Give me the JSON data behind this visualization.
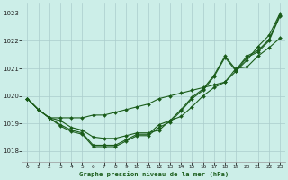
{
  "title": "Graphe pression niveau de la mer (hPa)",
  "background_color": "#cceee8",
  "grid_color": "#aacccc",
  "line_color": "#1a5c1a",
  "x_ticks": [
    0,
    1,
    2,
    3,
    4,
    5,
    6,
    7,
    8,
    9,
    10,
    11,
    12,
    13,
    14,
    15,
    16,
    17,
    18,
    19,
    20,
    21,
    22,
    23
  ],
  "ylim": [
    1017.6,
    1023.4
  ],
  "yticks": [
    1018,
    1019,
    1020,
    1021,
    1022,
    1023
  ],
  "series": [
    [
      1019.9,
      1019.5,
      1019.2,
      1019.2,
      1019.2,
      1019.2,
      1019.3,
      1019.3,
      1019.4,
      1019.5,
      1019.6,
      1019.7,
      1019.9,
      1020.0,
      1020.1,
      1020.2,
      1020.3,
      1020.4,
      1020.5,
      1020.9,
      1021.3,
      1021.8,
      1022.2,
      1023.0
    ],
    [
      1019.9,
      1019.5,
      1019.2,
      1019.1,
      1018.85,
      1018.75,
      1018.5,
      1018.45,
      1018.45,
      1018.55,
      1018.65,
      1018.65,
      1018.75,
      1019.1,
      1019.25,
      1019.6,
      1020.0,
      1020.3,
      1020.5,
      1021.0,
      1021.05,
      1021.45,
      1021.75,
      1022.1
    ],
    [
      1019.9,
      1019.5,
      1019.2,
      1018.95,
      1018.75,
      1018.65,
      1018.2,
      1018.2,
      1018.2,
      1018.4,
      1018.6,
      1018.6,
      1018.95,
      1019.1,
      1019.5,
      1019.95,
      1020.25,
      1020.75,
      1021.45,
      1020.95,
      1021.45,
      1021.65,
      1022.05,
      1022.95
    ],
    [
      1019.9,
      1019.5,
      1019.2,
      1018.9,
      1018.7,
      1018.6,
      1018.15,
      1018.15,
      1018.15,
      1018.35,
      1018.55,
      1018.55,
      1018.85,
      1019.05,
      1019.45,
      1019.9,
      1020.2,
      1020.7,
      1021.4,
      1020.9,
      1021.4,
      1021.6,
      1022.0,
      1022.9
    ]
  ]
}
